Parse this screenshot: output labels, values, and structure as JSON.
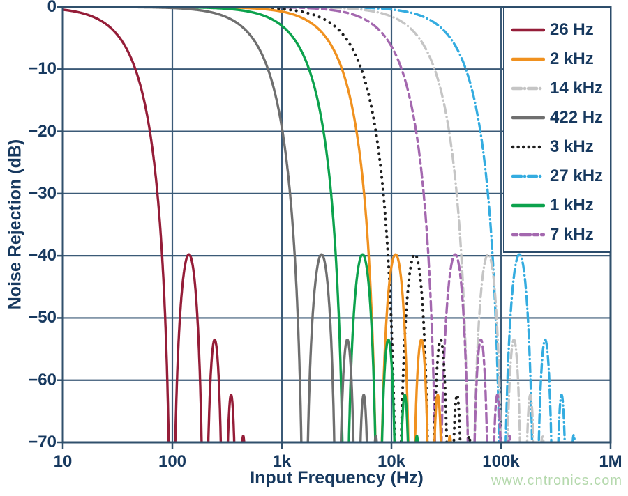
{
  "watermark": "www.cntronics.com",
  "colors": {
    "text_navy": "#17395f",
    "grid": "#3b5a77",
    "frame": "#30506c",
    "background": "#ffffff",
    "watermark_green": "#b5d9ad"
  },
  "chart_data": {
    "type": "line",
    "title": "",
    "x_axis": {
      "label": "Input Frequency (Hz)",
      "scale": "log",
      "min": 10,
      "max": 1000000,
      "ticks": [
        {
          "value": 10,
          "label": "10"
        },
        {
          "value": 100,
          "label": "100"
        },
        {
          "value": 1000,
          "label": "1k"
        },
        {
          "value": 10000,
          "label": "10k"
        },
        {
          "value": 100000,
          "label": "100k"
        },
        {
          "value": 1000000,
          "label": "1M"
        }
      ]
    },
    "y_axis": {
      "label": "Noise Rejection (dB)",
      "scale": "linear",
      "min": -70,
      "max": 0,
      "ticks": [
        {
          "value": 0,
          "label": "0"
        },
        {
          "value": -10,
          "label": "−10"
        },
        {
          "value": -20,
          "label": "−20"
        },
        {
          "value": -30,
          "label": "−30"
        },
        {
          "value": -40,
          "label": "−40"
        },
        {
          "value": -50,
          "label": "−50"
        },
        {
          "value": -60,
          "label": "−60"
        },
        {
          "value": -70,
          "label": "−70"
        }
      ]
    },
    "grid": "on",
    "legend_position": "top-right",
    "model": "Each curve is a sinc3 low-pass filter magnitude response in dB: 60*log10|sinc(pi*f/notch_hz)|, clipped at -70 dB; notch_hz = 3.81 x bandwidth (-3 dB) label; curves labelled 14 kHz and 27 kHz show a flattened high-frequency lobe envelope",
    "series": [
      {
        "label": "26 Hz",
        "bandwidth_hz": 26,
        "notch_hz": 99,
        "color": "#951d38",
        "dash": "solid",
        "tail_floor": false
      },
      {
        "label": "2 kHz",
        "bandwidth_hz": 2000,
        "notch_hz": 7620,
        "color": "#f0911f",
        "dash": "solid",
        "tail_floor": false
      },
      {
        "label": "14 kHz",
        "bandwidth_hz": 14000,
        "notch_hz": 53340,
        "color": "#c5c5c5",
        "dash": "dashdot",
        "tail_floor": true
      },
      {
        "label": "422 Hz",
        "bandwidth_hz": 422,
        "notch_hz": 1608,
        "color": "#6f6f6f",
        "dash": "solid",
        "tail_floor": false
      },
      {
        "label": "3 kHz",
        "bandwidth_hz": 3000,
        "notch_hz": 11430,
        "color": "#1e1e1e",
        "dash": "dotted",
        "tail_floor": false
      },
      {
        "label": "27 kHz",
        "bandwidth_hz": 27000,
        "notch_hz": 102870,
        "color": "#34ace0",
        "dash": "dashdot",
        "tail_floor": true
      },
      {
        "label": "1 kHz",
        "bandwidth_hz": 1000,
        "notch_hz": 3810,
        "color": "#0ca24d",
        "dash": "solid",
        "tail_floor": false
      },
      {
        "label": "7 kHz",
        "bandwidth_hz": 7000,
        "notch_hz": 26670,
        "color": "#a468af",
        "dash": "dashed",
        "tail_floor": false
      }
    ]
  }
}
